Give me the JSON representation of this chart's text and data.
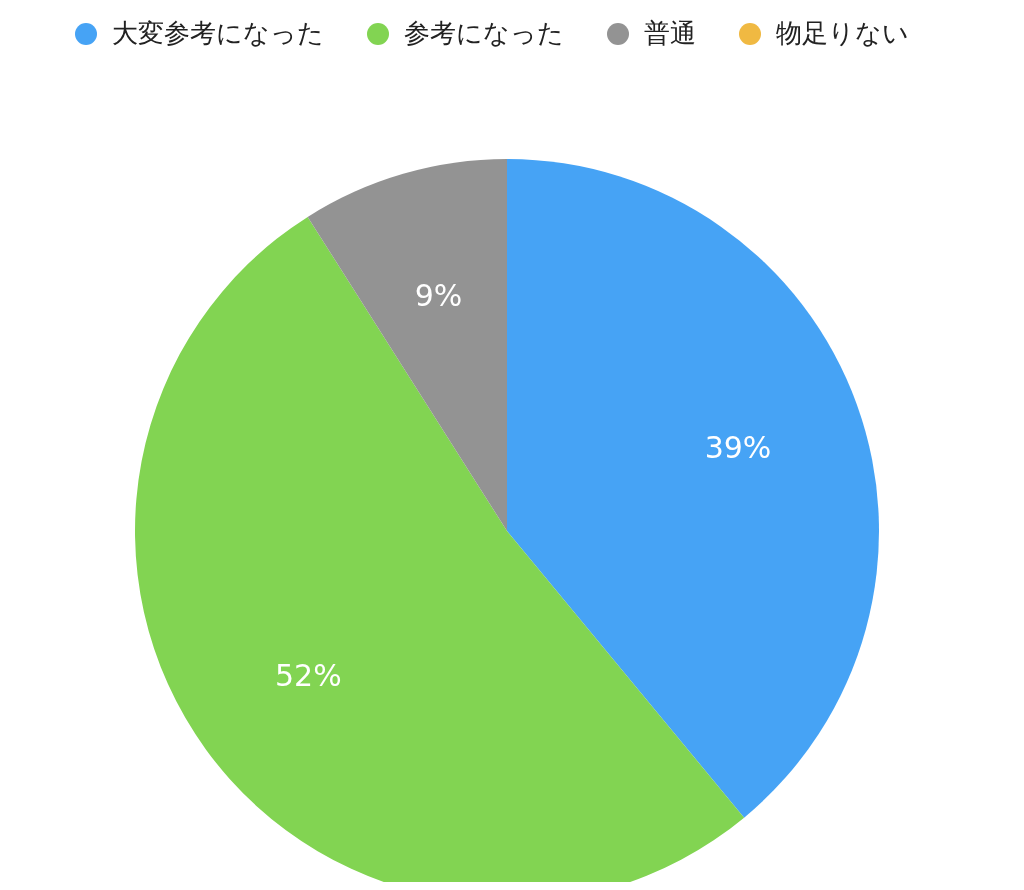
{
  "chart_data": {
    "type": "pie",
    "categories": [
      "大変参考になった",
      "参考になった",
      "普通",
      "物足りない"
    ],
    "values": [
      39,
      52,
      9,
      0
    ],
    "colors": [
      "#46a3f5",
      "#82d452",
      "#939393",
      "#f0b942"
    ],
    "value_labels": [
      "39%",
      "52%",
      "9%",
      null
    ],
    "legend": "top"
  }
}
